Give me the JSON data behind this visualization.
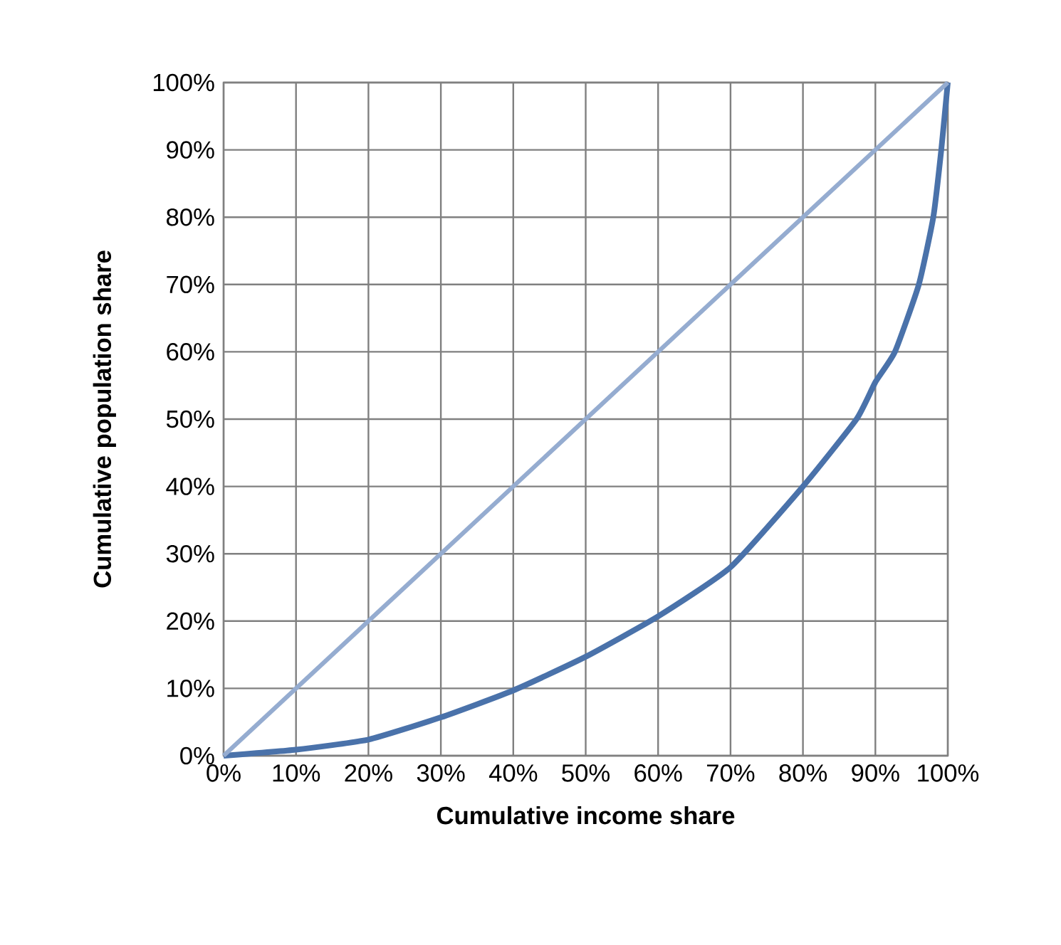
{
  "chart_data": {
    "type": "line",
    "xlabel": "Cumulative income share",
    "ylabel": "Cumulative population share",
    "xlim": [
      0,
      100
    ],
    "ylim": [
      0,
      100
    ],
    "xticks": [
      {
        "value": 0,
        "label": "0%"
      },
      {
        "value": 10,
        "label": "10%"
      },
      {
        "value": 20,
        "label": "20%"
      },
      {
        "value": 30,
        "label": "30%"
      },
      {
        "value": 40,
        "label": "40%"
      },
      {
        "value": 50,
        "label": "50%"
      },
      {
        "value": 60,
        "label": "60%"
      },
      {
        "value": 70,
        "label": "70%"
      },
      {
        "value": 80,
        "label": "80%"
      },
      {
        "value": 90,
        "label": "90%"
      },
      {
        "value": 100,
        "label": "100%"
      }
    ],
    "yticks": [
      {
        "value": 0,
        "label": "0%"
      },
      {
        "value": 10,
        "label": "10%"
      },
      {
        "value": 20,
        "label": "20%"
      },
      {
        "value": 30,
        "label": "30%"
      },
      {
        "value": 40,
        "label": "40%"
      },
      {
        "value": 50,
        "label": "50%"
      },
      {
        "value": 60,
        "label": "60%"
      },
      {
        "value": 70,
        "label": "70%"
      },
      {
        "value": 80,
        "label": "80%"
      },
      {
        "value": 90,
        "label": "90%"
      },
      {
        "value": 100,
        "label": "100%"
      }
    ],
    "grid": true,
    "marker": "none",
    "line_style": "solid",
    "series": [
      {
        "color": "#4a72aa",
        "x": [
          0,
          10,
          20,
          30,
          40,
          50,
          60,
          70,
          80,
          87.4,
          90,
          92.7,
          96,
          98,
          99.1,
          100
        ],
        "values": [
          0,
          0.9,
          2.4,
          5.7,
          9.7,
          14.7,
          20.7,
          28,
          40,
          50,
          55.5,
          60,
          70,
          80,
          90,
          100
        ]
      },
      {
        "color": "#95acd0",
        "x": [
          0,
          100
        ],
        "values": [
          0,
          100
        ]
      }
    ]
  }
}
